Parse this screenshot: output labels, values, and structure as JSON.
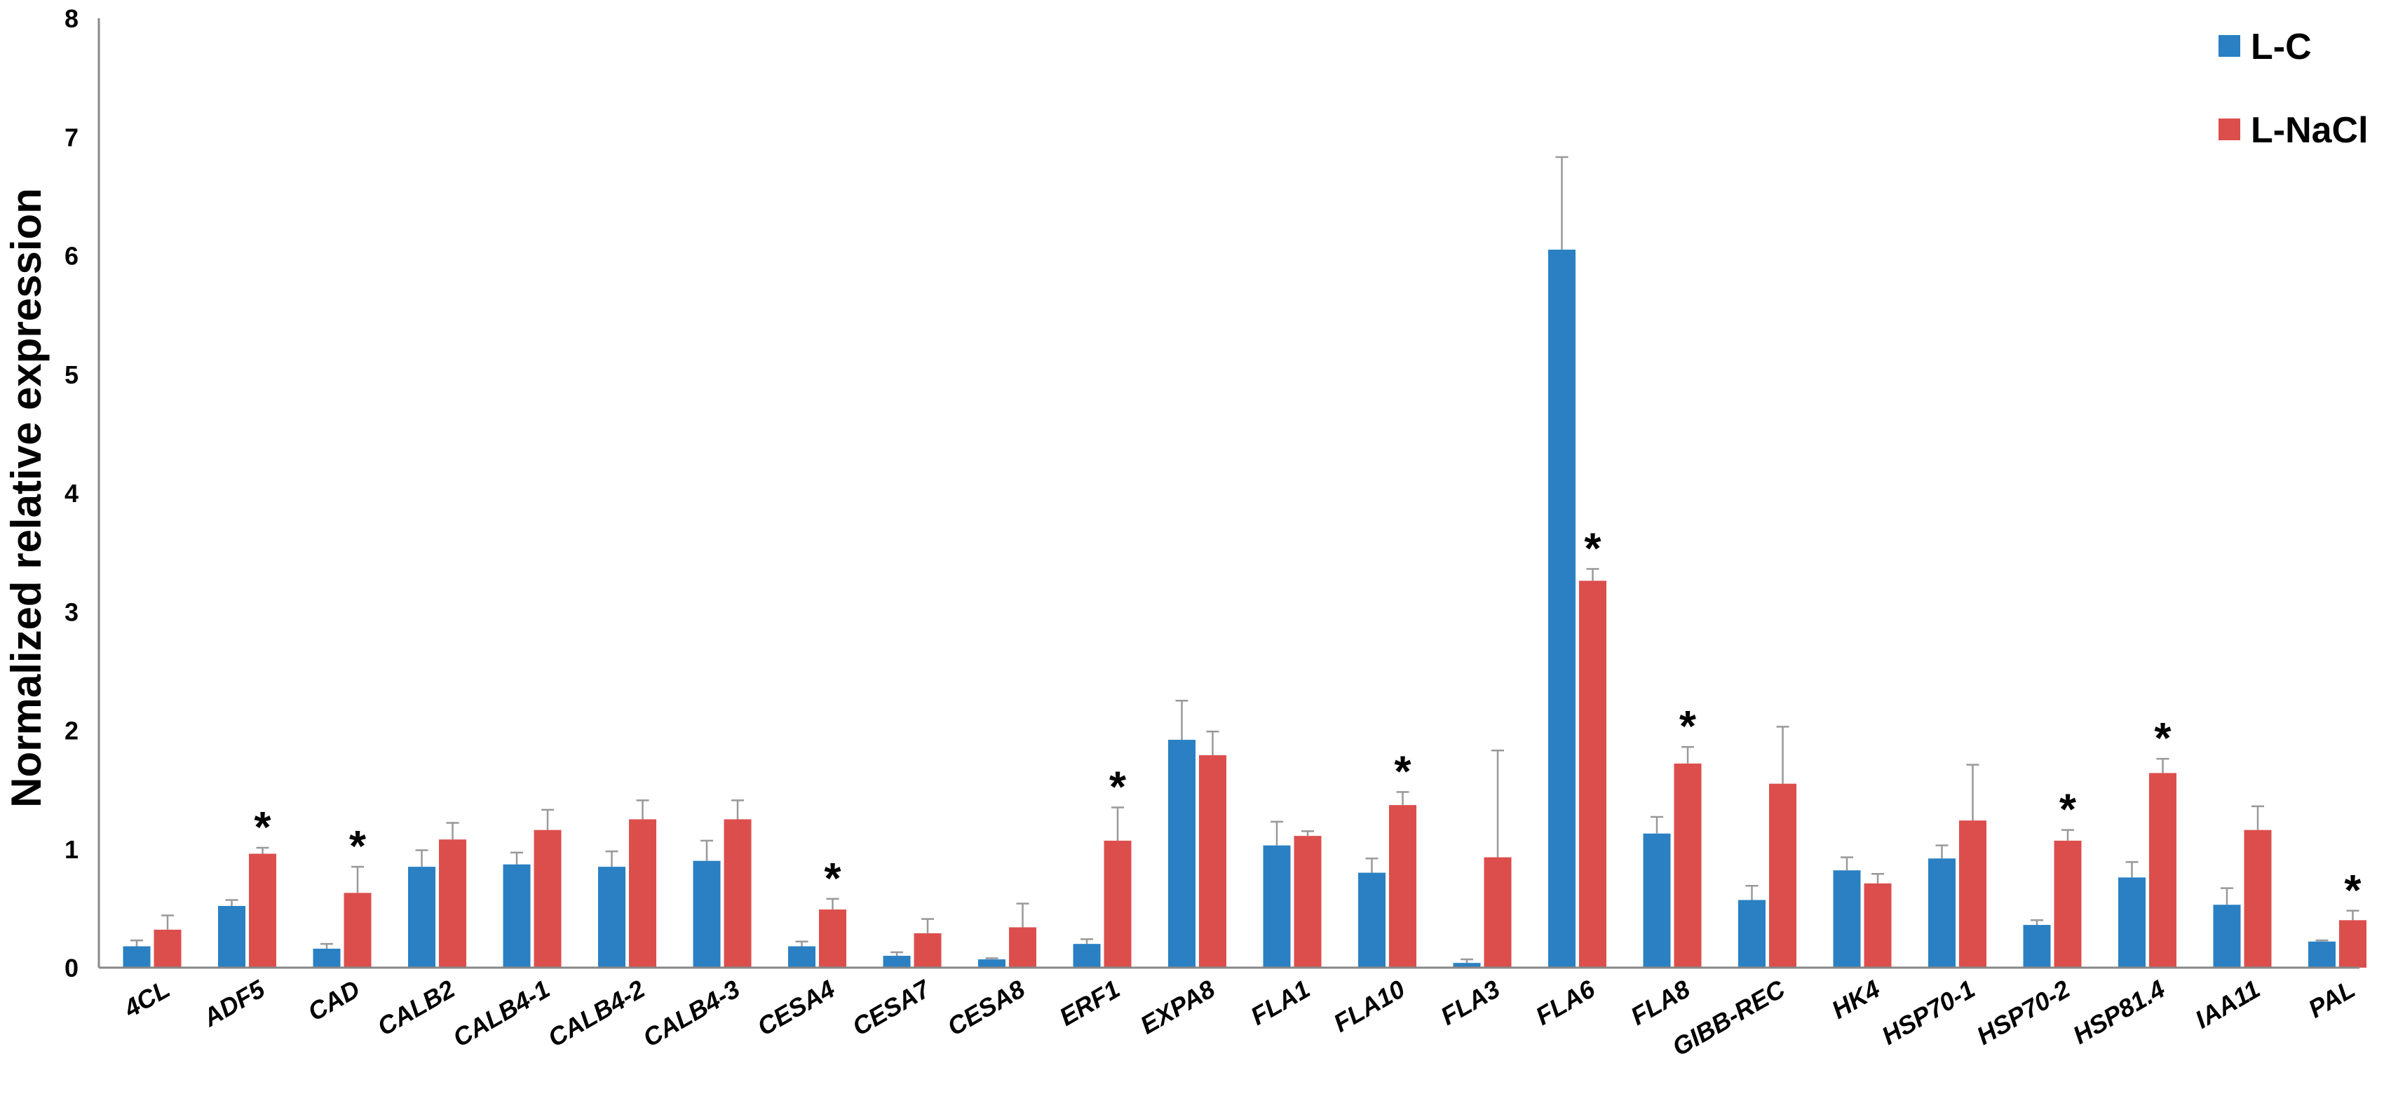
{
  "chart_data": {
    "type": "bar",
    "title": "",
    "xlabel": "",
    "ylabel": "Normalized relative expression",
    "ylim": [
      0,
      8
    ],
    "yticks": [
      0,
      1,
      2,
      3,
      4,
      5,
      6,
      7,
      8
    ],
    "grid": false,
    "legend_position": "top-right",
    "categories": [
      "4CL",
      "ADF5",
      "CAD",
      "CALB2",
      "CALB4-1",
      "CALB4-2",
      "CALB4-3",
      "CESA4",
      "CESA7",
      "CESA8",
      "ERF1",
      "EXPA8",
      "FLA1",
      "FLA10",
      "FLA3",
      "FLA6",
      "FLA8",
      "GIBB-REC",
      "HK4",
      "HSP70-1",
      "HSP70-2",
      "HSP81.4",
      "IAA11",
      "PAL"
    ],
    "series": [
      {
        "name": "L-C",
        "color": "#2a80c2",
        "values": [
          0.18,
          0.52,
          0.16,
          0.85,
          0.87,
          0.85,
          0.9,
          0.18,
          0.1,
          0.07,
          0.2,
          1.92,
          1.03,
          0.8,
          0.04,
          6.05,
          1.13,
          0.57,
          0.82,
          0.92,
          0.36,
          0.76,
          0.53,
          0.22
        ],
        "errors": [
          0.05,
          0.05,
          0.04,
          0.14,
          0.1,
          0.13,
          0.17,
          0.04,
          0.03,
          0.01,
          0.04,
          0.33,
          0.2,
          0.12,
          0.03,
          0.78,
          0.14,
          0.12,
          0.11,
          0.11,
          0.04,
          0.13,
          0.14,
          0.01
        ]
      },
      {
        "name": "L-NaCl",
        "color": "#dc4e4c",
        "values": [
          0.32,
          0.96,
          0.63,
          1.08,
          1.16,
          1.25,
          1.25,
          0.49,
          0.29,
          0.34,
          1.07,
          1.79,
          1.11,
          1.37,
          0.93,
          3.26,
          1.72,
          1.55,
          0.71,
          1.24,
          1.07,
          1.64,
          1.16,
          0.4
        ],
        "errors": [
          0.12,
          0.05,
          0.22,
          0.14,
          0.17,
          0.16,
          0.16,
          0.09,
          0.12,
          0.2,
          0.28,
          0.2,
          0.04,
          0.11,
          0.9,
          0.1,
          0.14,
          0.48,
          0.08,
          0.47,
          0.09,
          0.12,
          0.2,
          0.08
        ]
      }
    ],
    "significance_marker": "*",
    "significant_categories": [
      "ADF5",
      "CAD",
      "CESA4",
      "ERF1",
      "FLA10",
      "FLA6",
      "FLA8",
      "HSP70-2",
      "HSP81.4",
      "PAL"
    ]
  }
}
